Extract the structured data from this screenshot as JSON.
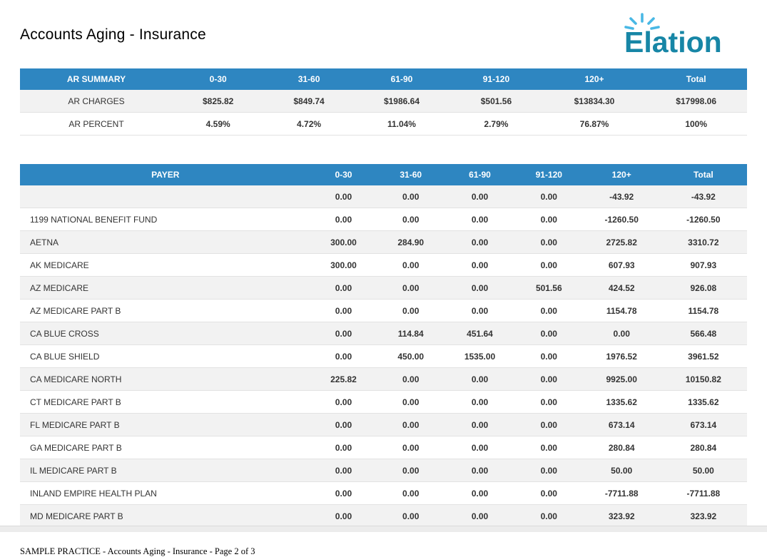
{
  "page": {
    "title": "Accounts Aging - Insurance",
    "logo_text": "Elation",
    "footer": "SAMPLE PRACTICE - Accounts Aging - Insurance - Page 2 of 3"
  },
  "colors": {
    "header_blue": "#2e86c1",
    "row_stripe": "#f2f2f2",
    "logo_text": "#1786a6",
    "logo_rays": "#49b8e5"
  },
  "summary_table": {
    "headers": [
      "AR SUMMARY",
      "0-30",
      "31-60",
      "61-90",
      "91-120",
      "120+",
      "Total"
    ],
    "rows": [
      {
        "label": "AR CHARGES",
        "values": [
          "$825.82",
          "$849.74",
          "$1986.64",
          "$501.56",
          "$13834.30",
          "$17998.06"
        ]
      },
      {
        "label": "AR PERCENT",
        "values": [
          "4.59%",
          "4.72%",
          "11.04%",
          "2.79%",
          "76.87%",
          "100%"
        ]
      }
    ]
  },
  "payer_table": {
    "headers": [
      "PAYER",
      "0-30",
      "31-60",
      "61-90",
      "91-120",
      "120+",
      "Total"
    ],
    "rows": [
      {
        "payer": "",
        "values": [
          "0.00",
          "0.00",
          "0.00",
          "0.00",
          "-43.92",
          "-43.92"
        ]
      },
      {
        "payer": "1199 NATIONAL BENEFIT FUND",
        "values": [
          "0.00",
          "0.00",
          "0.00",
          "0.00",
          "-1260.50",
          "-1260.50"
        ]
      },
      {
        "payer": "AETNA",
        "values": [
          "300.00",
          "284.90",
          "0.00",
          "0.00",
          "2725.82",
          "3310.72"
        ]
      },
      {
        "payer": "AK MEDICARE",
        "values": [
          "300.00",
          "0.00",
          "0.00",
          "0.00",
          "607.93",
          "907.93"
        ]
      },
      {
        "payer": "AZ MEDICARE",
        "values": [
          "0.00",
          "0.00",
          "0.00",
          "501.56",
          "424.52",
          "926.08"
        ]
      },
      {
        "payer": "AZ MEDICARE PART B",
        "values": [
          "0.00",
          "0.00",
          "0.00",
          "0.00",
          "1154.78",
          "1154.78"
        ]
      },
      {
        "payer": "CA BLUE CROSS",
        "values": [
          "0.00",
          "114.84",
          "451.64",
          "0.00",
          "0.00",
          "566.48"
        ]
      },
      {
        "payer": "CA BLUE SHIELD",
        "values": [
          "0.00",
          "450.00",
          "1535.00",
          "0.00",
          "1976.52",
          "3961.52"
        ]
      },
      {
        "payer": "CA MEDICARE NORTH",
        "values": [
          "225.82",
          "0.00",
          "0.00",
          "0.00",
          "9925.00",
          "10150.82"
        ]
      },
      {
        "payer": "CT MEDICARE PART B",
        "values": [
          "0.00",
          "0.00",
          "0.00",
          "0.00",
          "1335.62",
          "1335.62"
        ]
      },
      {
        "payer": "FL MEDICARE PART B",
        "values": [
          "0.00",
          "0.00",
          "0.00",
          "0.00",
          "673.14",
          "673.14"
        ]
      },
      {
        "payer": "GA MEDICARE PART B",
        "values": [
          "0.00",
          "0.00",
          "0.00",
          "0.00",
          "280.84",
          "280.84"
        ]
      },
      {
        "payer": "IL MEDICARE PART B",
        "values": [
          "0.00",
          "0.00",
          "0.00",
          "0.00",
          "50.00",
          "50.00"
        ]
      },
      {
        "payer": "INLAND EMPIRE HEALTH PLAN",
        "values": [
          "0.00",
          "0.00",
          "0.00",
          "0.00",
          "-7711.88",
          "-7711.88"
        ]
      },
      {
        "payer": "MD MEDICARE PART B",
        "values": [
          "0.00",
          "0.00",
          "0.00",
          "0.00",
          "323.92",
          "323.92"
        ]
      }
    ]
  }
}
